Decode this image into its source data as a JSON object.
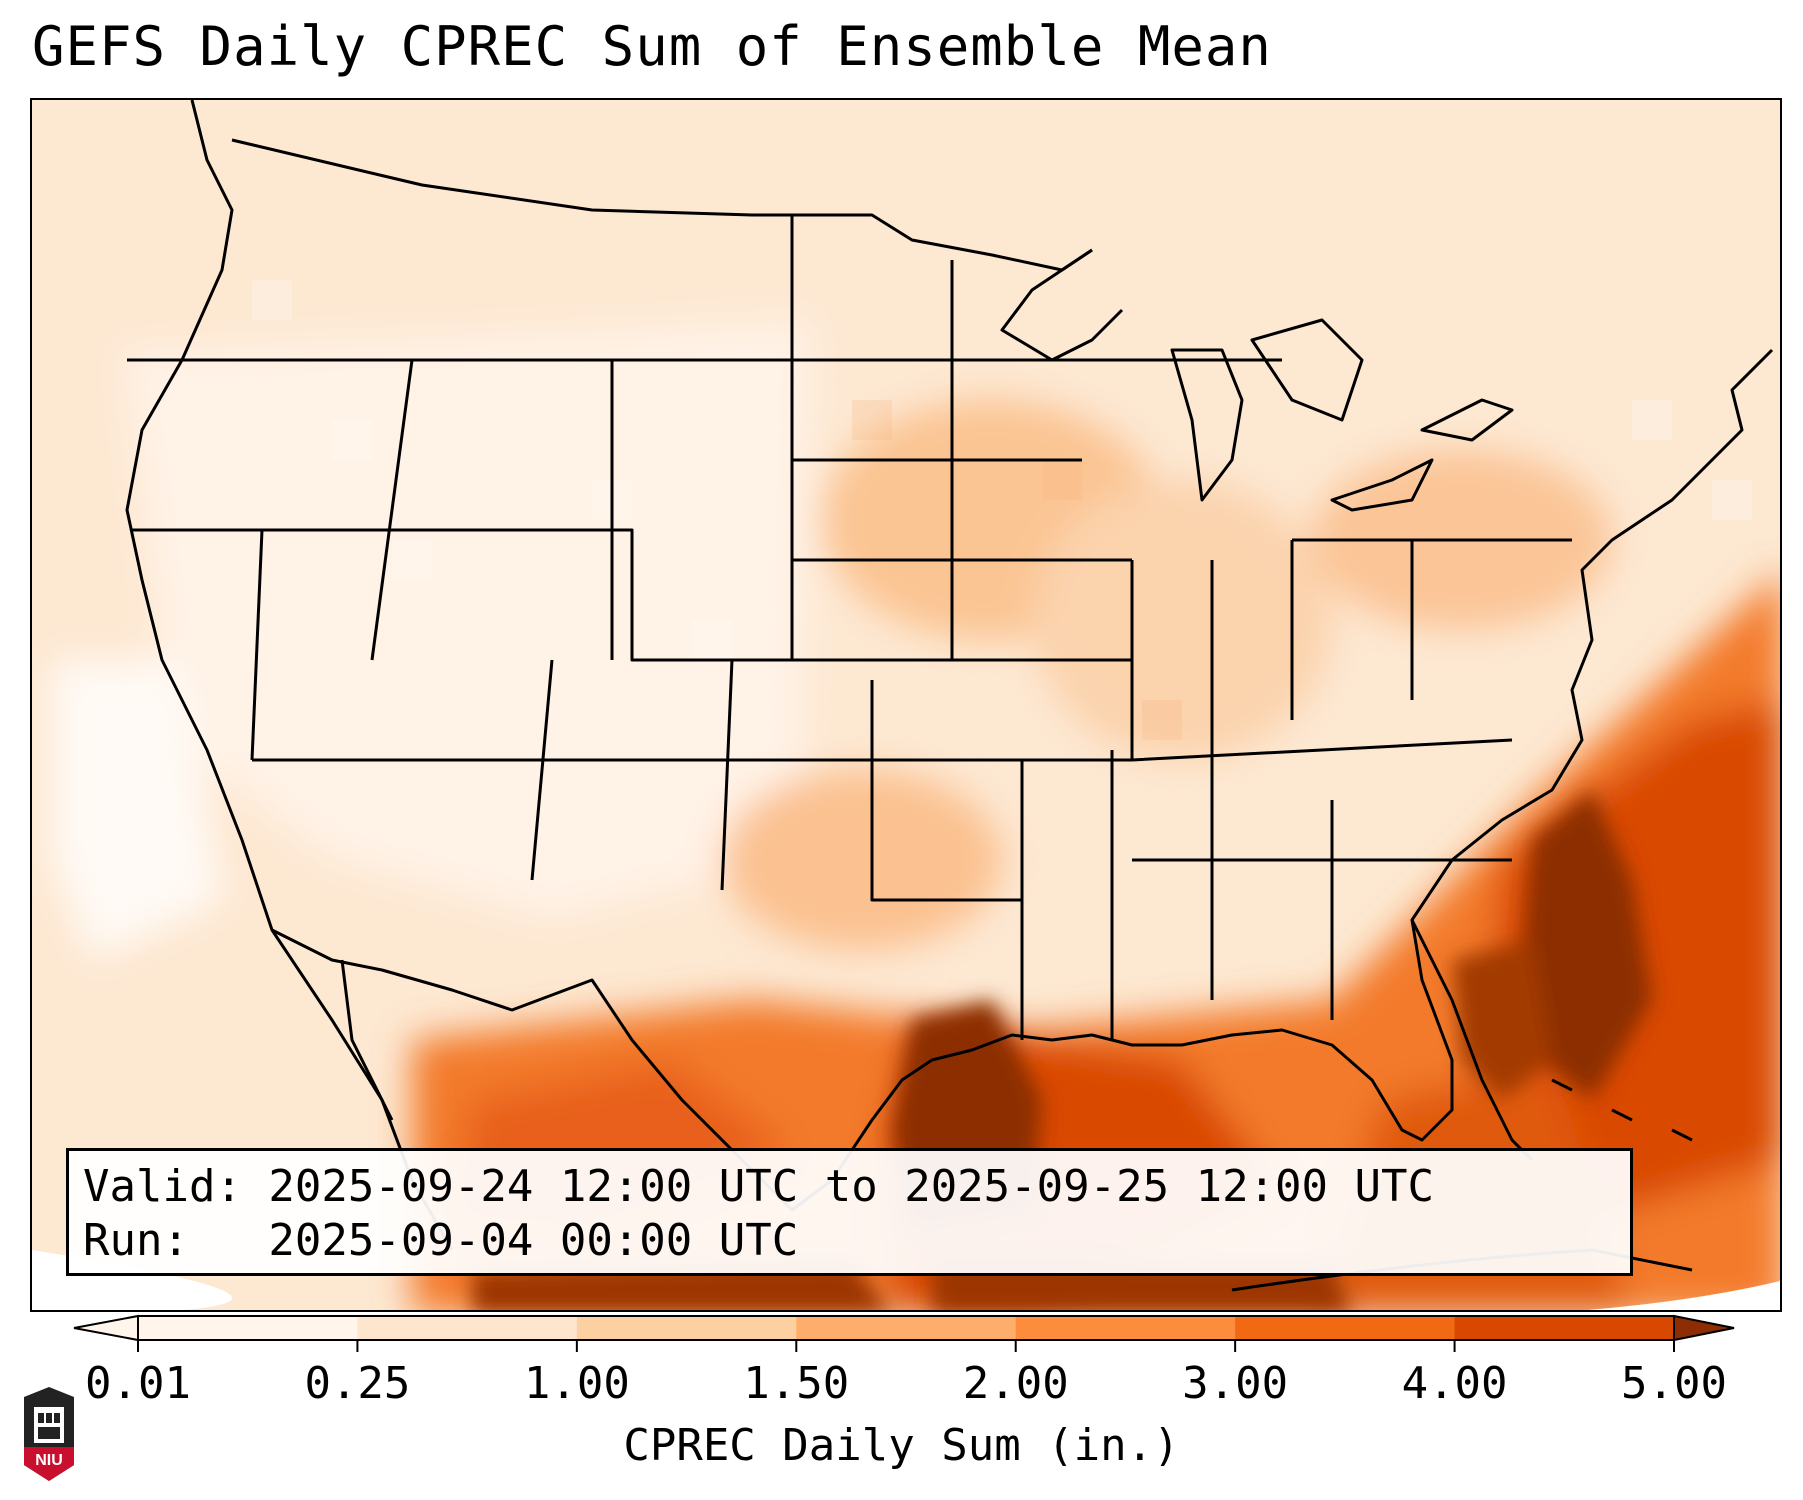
{
  "title": "GEFS Daily CPREC Sum of Ensemble Mean",
  "valid_line": "Valid: 2025-09-24 12:00 UTC to 2025-09-25 12:00 UTC",
  "run_line": "Run:   2025-09-04 00:00 UTC",
  "colorbar": {
    "label": "CPREC Daily Sum (in.)",
    "ticks": [
      "0.01",
      "0.25",
      "1.00",
      "1.50",
      "2.00",
      "3.00",
      "4.00",
      "5.00"
    ],
    "colors": [
      "#fff5eb",
      "#fee6ce",
      "#fdd0a2",
      "#fdae6b",
      "#fd8d3c",
      "#f16913",
      "#d94801",
      "#8c2d04"
    ],
    "extend": "both"
  },
  "logo_text": "NIU",
  "colors": {
    "max_rain": "#8c2d04",
    "heavy": "#d94801",
    "moderate": "#f16913",
    "light": "#fdae6b",
    "trace": "#fee6ce"
  }
}
